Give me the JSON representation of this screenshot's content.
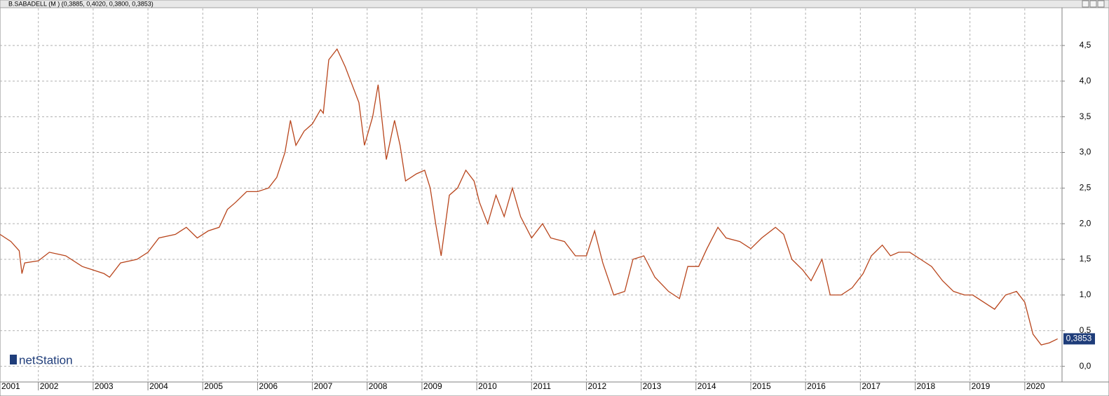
{
  "chart_data": {
    "type": "line",
    "title": "B.SABADELL (M ) (0,3885, 0,4020, 0,3800, 0,3853)",
    "logo": "netStation",
    "x": [
      2001.3,
      2001.5,
      2001.65,
      2001.7,
      2001.75,
      2002.0,
      2002.2,
      2002.5,
      2002.8,
      2003.0,
      2003.2,
      2003.3,
      2003.5,
      2003.8,
      2004.0,
      2004.2,
      2004.5,
      2004.7,
      2004.9,
      2005.1,
      2005.3,
      2005.45,
      2005.6,
      2005.8,
      2006.0,
      2006.2,
      2006.35,
      2006.5,
      2006.6,
      2006.7,
      2006.85,
      2007.0,
      2007.15,
      2007.2,
      2007.3,
      2007.45,
      2007.6,
      2007.7,
      2007.85,
      2007.95,
      2008.1,
      2008.2,
      2008.35,
      2008.5,
      2008.6,
      2008.7,
      2008.9,
      2009.05,
      2009.15,
      2009.25,
      2009.35,
      2009.5,
      2009.65,
      2009.8,
      2009.95,
      2010.05,
      2010.2,
      2010.35,
      2010.5,
      2010.65,
      2010.8,
      2011.0,
      2011.2,
      2011.35,
      2011.6,
      2011.8,
      2012.0,
      2012.15,
      2012.3,
      2012.5,
      2012.7,
      2012.85,
      2013.05,
      2013.25,
      2013.5,
      2013.7,
      2013.85,
      2014.05,
      2014.2,
      2014.4,
      2014.55,
      2014.8,
      2015.0,
      2015.2,
      2015.45,
      2015.6,
      2015.75,
      2015.95,
      2016.1,
      2016.3,
      2016.45,
      2016.65,
      2016.85,
      2017.05,
      2017.2,
      2017.4,
      2017.55,
      2017.7,
      2017.9,
      2018.1,
      2018.3,
      2018.5,
      2018.7,
      2018.9,
      2019.05,
      2019.25,
      2019.45,
      2019.65,
      2019.85,
      2020.0,
      2020.15,
      2020.3,
      2020.45,
      2020.6
    ],
    "series": [
      {
        "name": "B.SABADELL",
        "color": "#b8451c",
        "values": [
          1.85,
          1.75,
          1.62,
          1.3,
          1.45,
          1.48,
          1.6,
          1.55,
          1.4,
          1.35,
          1.3,
          1.25,
          1.45,
          1.5,
          1.6,
          1.8,
          1.85,
          1.95,
          1.8,
          1.9,
          1.95,
          2.2,
          2.3,
          2.45,
          2.45,
          2.5,
          2.65,
          3.0,
          3.45,
          3.1,
          3.3,
          3.4,
          3.6,
          3.55,
          4.3,
          4.45,
          4.2,
          4.0,
          3.7,
          3.1,
          3.5,
          3.95,
          2.9,
          3.45,
          3.1,
          2.6,
          2.7,
          2.75,
          2.5,
          2.0,
          1.55,
          2.4,
          2.5,
          2.75,
          2.6,
          2.3,
          2.0,
          2.4,
          2.1,
          2.5,
          2.1,
          1.8,
          2.0,
          1.8,
          1.75,
          1.55,
          1.55,
          1.9,
          1.45,
          1.0,
          1.05,
          1.5,
          1.55,
          1.25,
          1.05,
          0.95,
          1.4,
          1.4,
          1.65,
          1.95,
          1.8,
          1.75,
          1.65,
          1.8,
          1.95,
          1.85,
          1.5,
          1.35,
          1.2,
          1.5,
          1.0,
          1.0,
          1.1,
          1.3,
          1.55,
          1.7,
          1.55,
          1.6,
          1.6,
          1.5,
          1.4,
          1.2,
          1.05,
          1.0,
          1.0,
          0.9,
          0.8,
          1.0,
          1.05,
          0.9,
          0.45,
          0.3,
          0.33,
          0.3853
        ]
      }
    ],
    "last_label": {
      "value": 0.3853,
      "label": "0,3853"
    },
    "xlim": [
      2001.3,
      2020.68
    ],
    "xticks": [
      2001,
      2002,
      2003,
      2004,
      2005,
      2006,
      2007,
      2008,
      2009,
      2010,
      2011,
      2012,
      2013,
      2014,
      2015,
      2016,
      2017,
      2018,
      2019,
      2020
    ],
    "ylim": [
      -0.22,
      5.02
    ],
    "yticks": [
      {
        "value": 0,
        "label": "0,0"
      },
      {
        "value": 0.5,
        "label": "0,5"
      },
      {
        "value": 1,
        "label": "1,0"
      },
      {
        "value": 1.5,
        "label": "1,5"
      },
      {
        "value": 2,
        "label": "2,0"
      },
      {
        "value": 2.5,
        "label": "2,5"
      },
      {
        "value": 3,
        "label": "3,0"
      },
      {
        "value": 3.5,
        "label": "3,5"
      },
      {
        "value": 4,
        "label": "4,0"
      },
      {
        "value": 4.5,
        "label": "4,5"
      }
    ],
    "grid": true
  }
}
